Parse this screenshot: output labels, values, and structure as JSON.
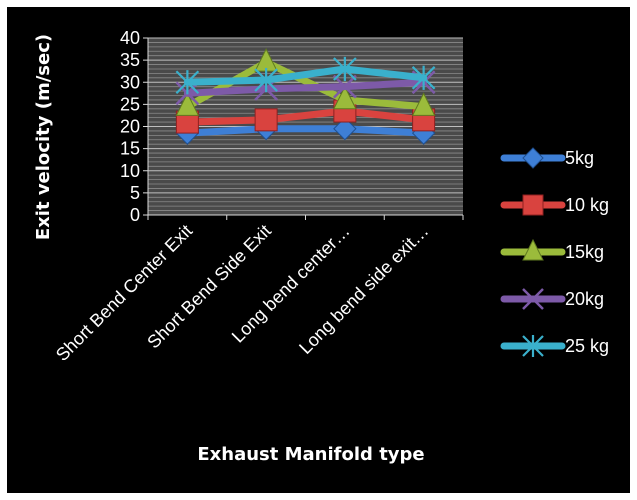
{
  "chart_data": {
    "type": "line",
    "title": "",
    "xlabel": "Exhaust Manifold type",
    "ylabel": "Exit velocity (m/sec)",
    "categories": [
      "Short Bend Center Exit",
      "Short Bend Side Exit",
      "Long bend center…",
      "Long bend side exit…"
    ],
    "ylim": [
      0,
      40
    ],
    "yticks": [
      0,
      5,
      10,
      15,
      20,
      25,
      30,
      35,
      40
    ],
    "grid": true,
    "legend_position": "right",
    "series": [
      {
        "name": "5kg",
        "values": [
          18.5,
          19.5,
          19.5,
          18.5
        ],
        "color": "#3e7fd6",
        "marker": "diamond"
      },
      {
        "name": "10 kg",
        "values": [
          21.0,
          21.5,
          23.5,
          21.5
        ],
        "color": "#d9433f",
        "marker": "square"
      },
      {
        "name": "15kg",
        "values": [
          24.5,
          34.5,
          26.0,
          24.5
        ],
        "color": "#9bbb3b",
        "marker": "triangle"
      },
      {
        "name": "20kg",
        "values": [
          27.5,
          28.5,
          29.0,
          30.0
        ],
        "color": "#7d5aa8",
        "marker": "x"
      },
      {
        "name": "25 kg",
        "values": [
          30.0,
          30.5,
          33.0,
          31.0
        ],
        "color": "#3ab0cc",
        "marker": "star"
      }
    ]
  }
}
